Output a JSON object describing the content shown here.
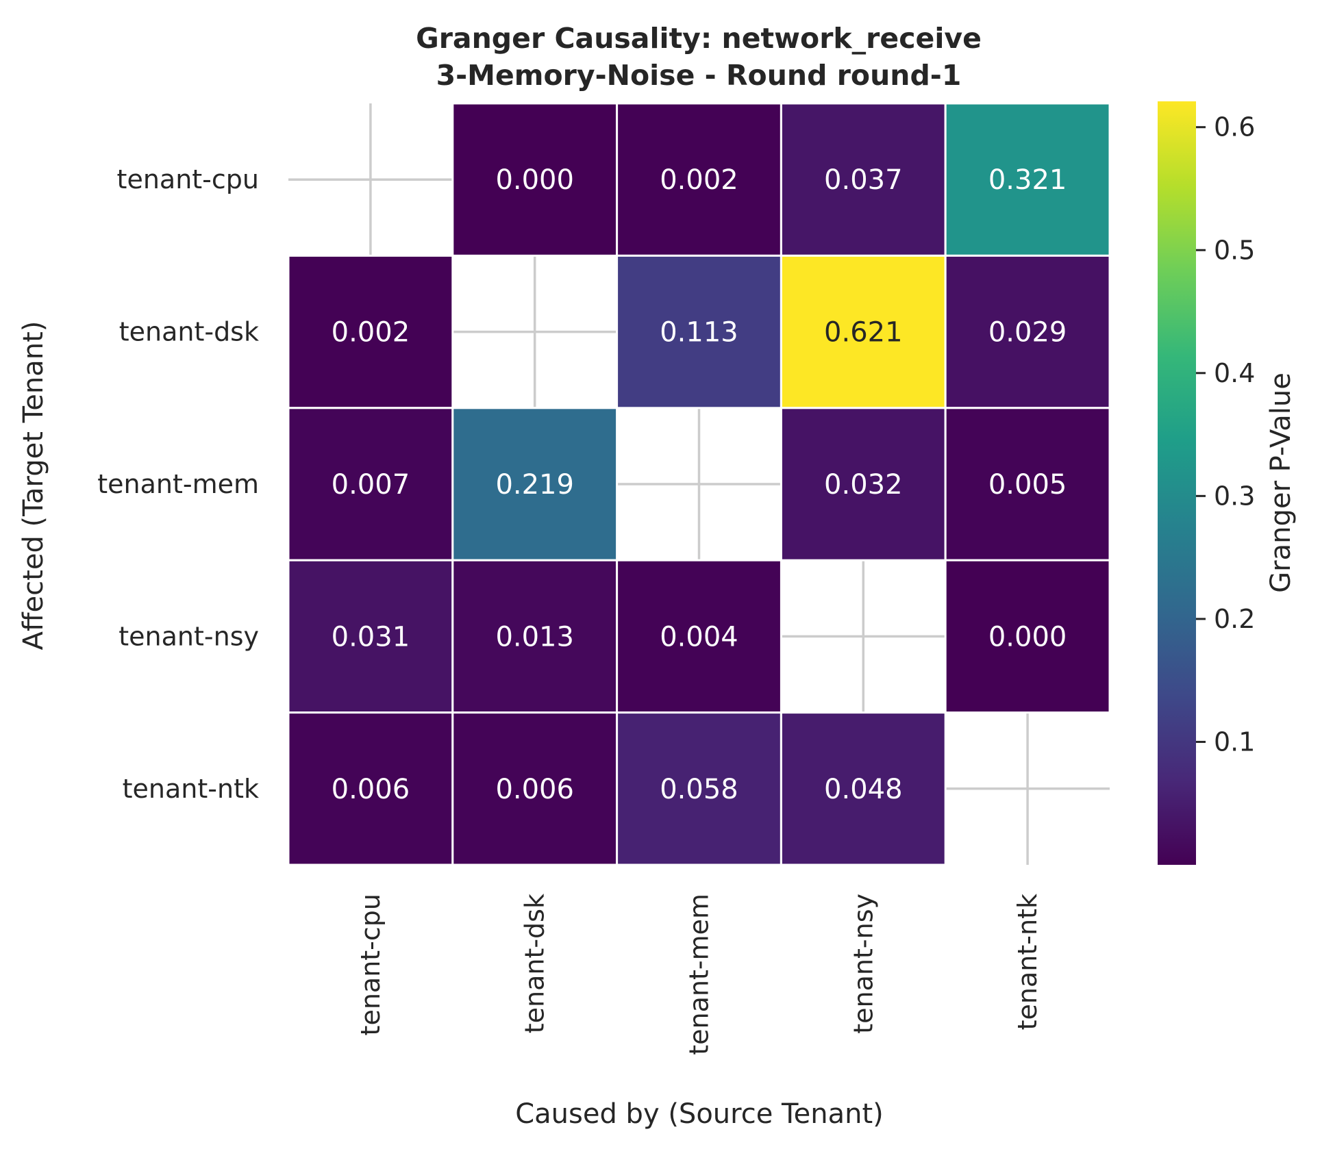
{
  "chart_data": {
    "type": "heatmap",
    "title_line1": "Granger Causality: network_receive",
    "title_line2": "3-Memory-Noise - Round round-1",
    "xlabel": "Caused by (Source Tenant)",
    "ylabel": "Affected (Target Tenant)",
    "x_categories": [
      "tenant-cpu",
      "tenant-dsk",
      "tenant-mem",
      "tenant-nsy",
      "tenant-ntk"
    ],
    "y_categories": [
      "tenant-cpu",
      "tenant-dsk",
      "tenant-mem",
      "tenant-nsy",
      "tenant-ntk"
    ],
    "values": [
      [
        null,
        0.0,
        0.002,
        0.037,
        0.321
      ],
      [
        0.002,
        null,
        0.113,
        0.621,
        0.029
      ],
      [
        0.007,
        0.219,
        null,
        0.032,
        0.005
      ],
      [
        0.031,
        0.013,
        0.004,
        null,
        0.0
      ],
      [
        0.006,
        0.006,
        0.058,
        0.048,
        null
      ]
    ],
    "value_format": "3 decimals",
    "colormap": "viridis",
    "colorbar": {
      "label": "Granger P-Value",
      "vmin": 0.0,
      "vmax": 0.621,
      "ticks": [
        0.1,
        0.2,
        0.3,
        0.4,
        0.5,
        0.6
      ],
      "tick_labels": [
        "0.1",
        "0.2",
        "0.3",
        "0.4",
        "0.5",
        "0.6"
      ]
    },
    "grid": true,
    "colors": {
      "grid": "#cccccc",
      "cell_border": "#ffffff",
      "text_light": "#ffffff",
      "text_dark": "#262626"
    }
  }
}
